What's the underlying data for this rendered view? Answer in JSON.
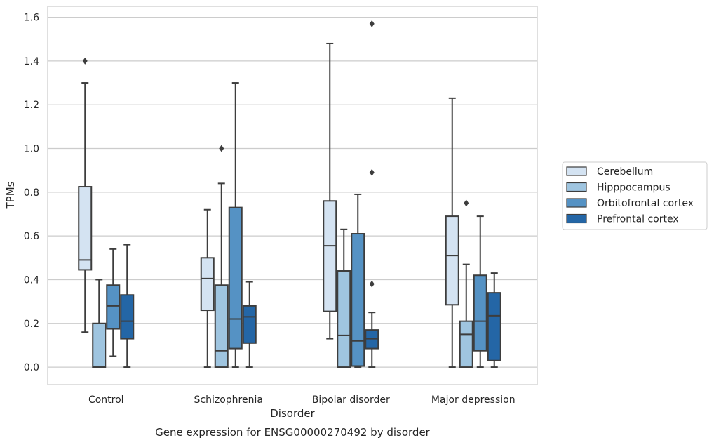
{
  "chart_data": {
    "type": "box",
    "title": "",
    "caption": "Gene expression for ENSG00000270492 by disorder",
    "xlabel": "Disorder",
    "ylabel": "TPMs",
    "ylim": [
      -0.08,
      1.65
    ],
    "yticks": [
      "0.0",
      "0.2",
      "0.4",
      "0.6",
      "0.8",
      "1.0",
      "1.2",
      "1.4",
      "1.6"
    ],
    "grid": "horizontal",
    "legend_position": "right",
    "categories": [
      "Control",
      "Schizophrenia",
      "Bipolar disorder",
      "Major depression"
    ],
    "series": [
      {
        "name": "Cerebellum",
        "color": "#d4e3f2",
        "boxes": [
          {
            "whislo": 0.16,
            "q1": 0.445,
            "med": 0.49,
            "q3": 0.825,
            "whishi": 1.3,
            "fliers": [
              1.4
            ]
          },
          {
            "whislo": 0.0,
            "q1": 0.26,
            "med": 0.405,
            "q3": 0.5,
            "whishi": 0.72,
            "fliers": []
          },
          {
            "whislo": 0.13,
            "q1": 0.255,
            "med": 0.555,
            "q3": 0.76,
            "whishi": 1.48,
            "fliers": []
          },
          {
            "whislo": 0.0,
            "q1": 0.285,
            "med": 0.51,
            "q3": 0.69,
            "whishi": 1.23,
            "fliers": []
          }
        ]
      },
      {
        "name": "Hipppocampus",
        "color": "#9fc5e0",
        "boxes": [
          {
            "whislo": 0.0,
            "q1": 0.0,
            "med": 0.0,
            "q3": 0.2,
            "whishi": 0.4,
            "fliers": []
          },
          {
            "whislo": 0.0,
            "q1": 0.0,
            "med": 0.075,
            "q3": 0.375,
            "whishi": 0.84,
            "fliers": [
              1.0
            ]
          },
          {
            "whislo": 0.0,
            "q1": 0.0,
            "med": 0.145,
            "q3": 0.44,
            "whishi": 0.63,
            "fliers": []
          },
          {
            "whislo": 0.0,
            "q1": 0.0,
            "med": 0.15,
            "q3": 0.21,
            "whishi": 0.47,
            "fliers": [
              0.75
            ]
          }
        ]
      },
      {
        "name": "Orbitofrontal cortex",
        "color": "#5592c4",
        "boxes": [
          {
            "whislo": 0.05,
            "q1": 0.175,
            "med": 0.28,
            "q3": 0.375,
            "whishi": 0.54,
            "fliers": []
          },
          {
            "whislo": 0.0,
            "q1": 0.085,
            "med": 0.22,
            "q3": 0.73,
            "whishi": 1.3,
            "fliers": []
          },
          {
            "whislo": 0.0,
            "q1": 0.005,
            "med": 0.12,
            "q3": 0.61,
            "whishi": 0.79,
            "fliers": []
          },
          {
            "whislo": 0.0,
            "q1": 0.075,
            "med": 0.21,
            "q3": 0.42,
            "whishi": 0.69,
            "fliers": []
          }
        ]
      },
      {
        "name": "Prefrontal cortex",
        "color": "#2466a6",
        "boxes": [
          {
            "whislo": 0.0,
            "q1": 0.13,
            "med": 0.21,
            "q3": 0.33,
            "whishi": 0.56,
            "fliers": []
          },
          {
            "whislo": 0.0,
            "q1": 0.11,
            "med": 0.23,
            "q3": 0.28,
            "whishi": 0.39,
            "fliers": []
          },
          {
            "whislo": 0.0,
            "q1": 0.085,
            "med": 0.13,
            "q3": 0.17,
            "whishi": 0.25,
            "fliers": [
              0.38,
              0.89,
              1.57
            ]
          },
          {
            "whislo": 0.0,
            "q1": 0.03,
            "med": 0.235,
            "q3": 0.34,
            "whishi": 0.43,
            "fliers": []
          }
        ]
      }
    ]
  }
}
